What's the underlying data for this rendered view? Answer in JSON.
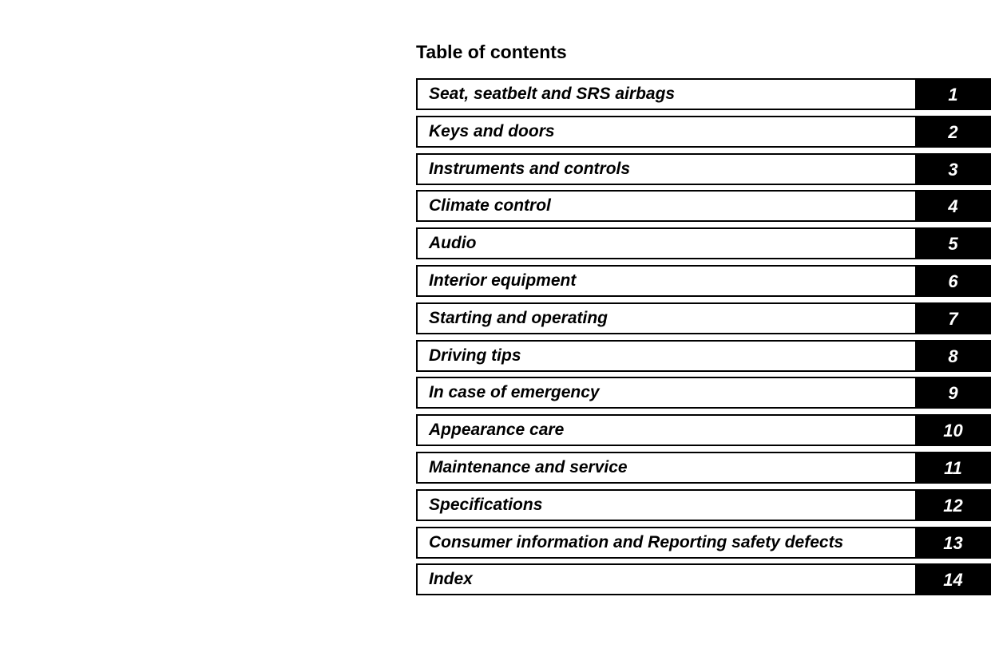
{
  "title": "Table of contents",
  "chapters": [
    {
      "label": "Seat, seatbelt and SRS airbags",
      "number": "1"
    },
    {
      "label": "Keys and doors",
      "number": "2"
    },
    {
      "label": "Instruments and controls",
      "number": "3"
    },
    {
      "label": "Climate control",
      "number": "4"
    },
    {
      "label": "Audio",
      "number": "5"
    },
    {
      "label": "Interior equipment",
      "number": "6"
    },
    {
      "label": "Starting and operating",
      "number": "7"
    },
    {
      "label": "Driving tips",
      "number": "8"
    },
    {
      "label": "In case of emergency",
      "number": "9"
    },
    {
      "label": "Appearance care",
      "number": "10"
    },
    {
      "label": "Maintenance and service",
      "number": "11"
    },
    {
      "label": "Specifications",
      "number": "12"
    },
    {
      "label": "Consumer information and Reporting safety defects",
      "number": "13"
    },
    {
      "label": "Index",
      "number": "14"
    }
  ]
}
